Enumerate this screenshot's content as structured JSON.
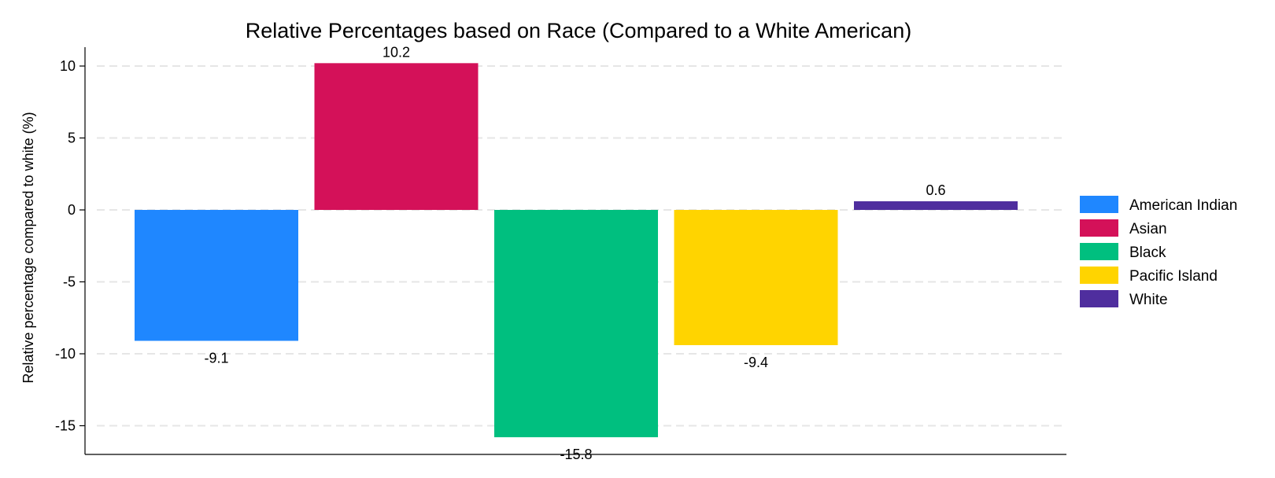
{
  "chart_data": {
    "type": "bar",
    "title": "Relative Percentages based on Race (Compared to a White American)",
    "xlabel": "",
    "ylabel": "Relative percentage compared to white (%)",
    "ylim": [
      -17,
      11
    ],
    "yticks": [
      10,
      5,
      0,
      -5,
      -10,
      -15
    ],
    "grid": true,
    "legend_position": "right",
    "categories": [
      "American Indian",
      "Asian",
      "Black",
      "Pacific Island",
      "White"
    ],
    "values": [
      -9.1,
      10.2,
      -15.8,
      -9.4,
      0.6
    ],
    "value_labels": [
      "-9.1",
      "10.2",
      "-15.8",
      "-9.4",
      "0.6"
    ],
    "colors": [
      "#1f87ff",
      "#d41159",
      "#00bf7f",
      "#ffd400",
      "#4f2e9e"
    ]
  }
}
